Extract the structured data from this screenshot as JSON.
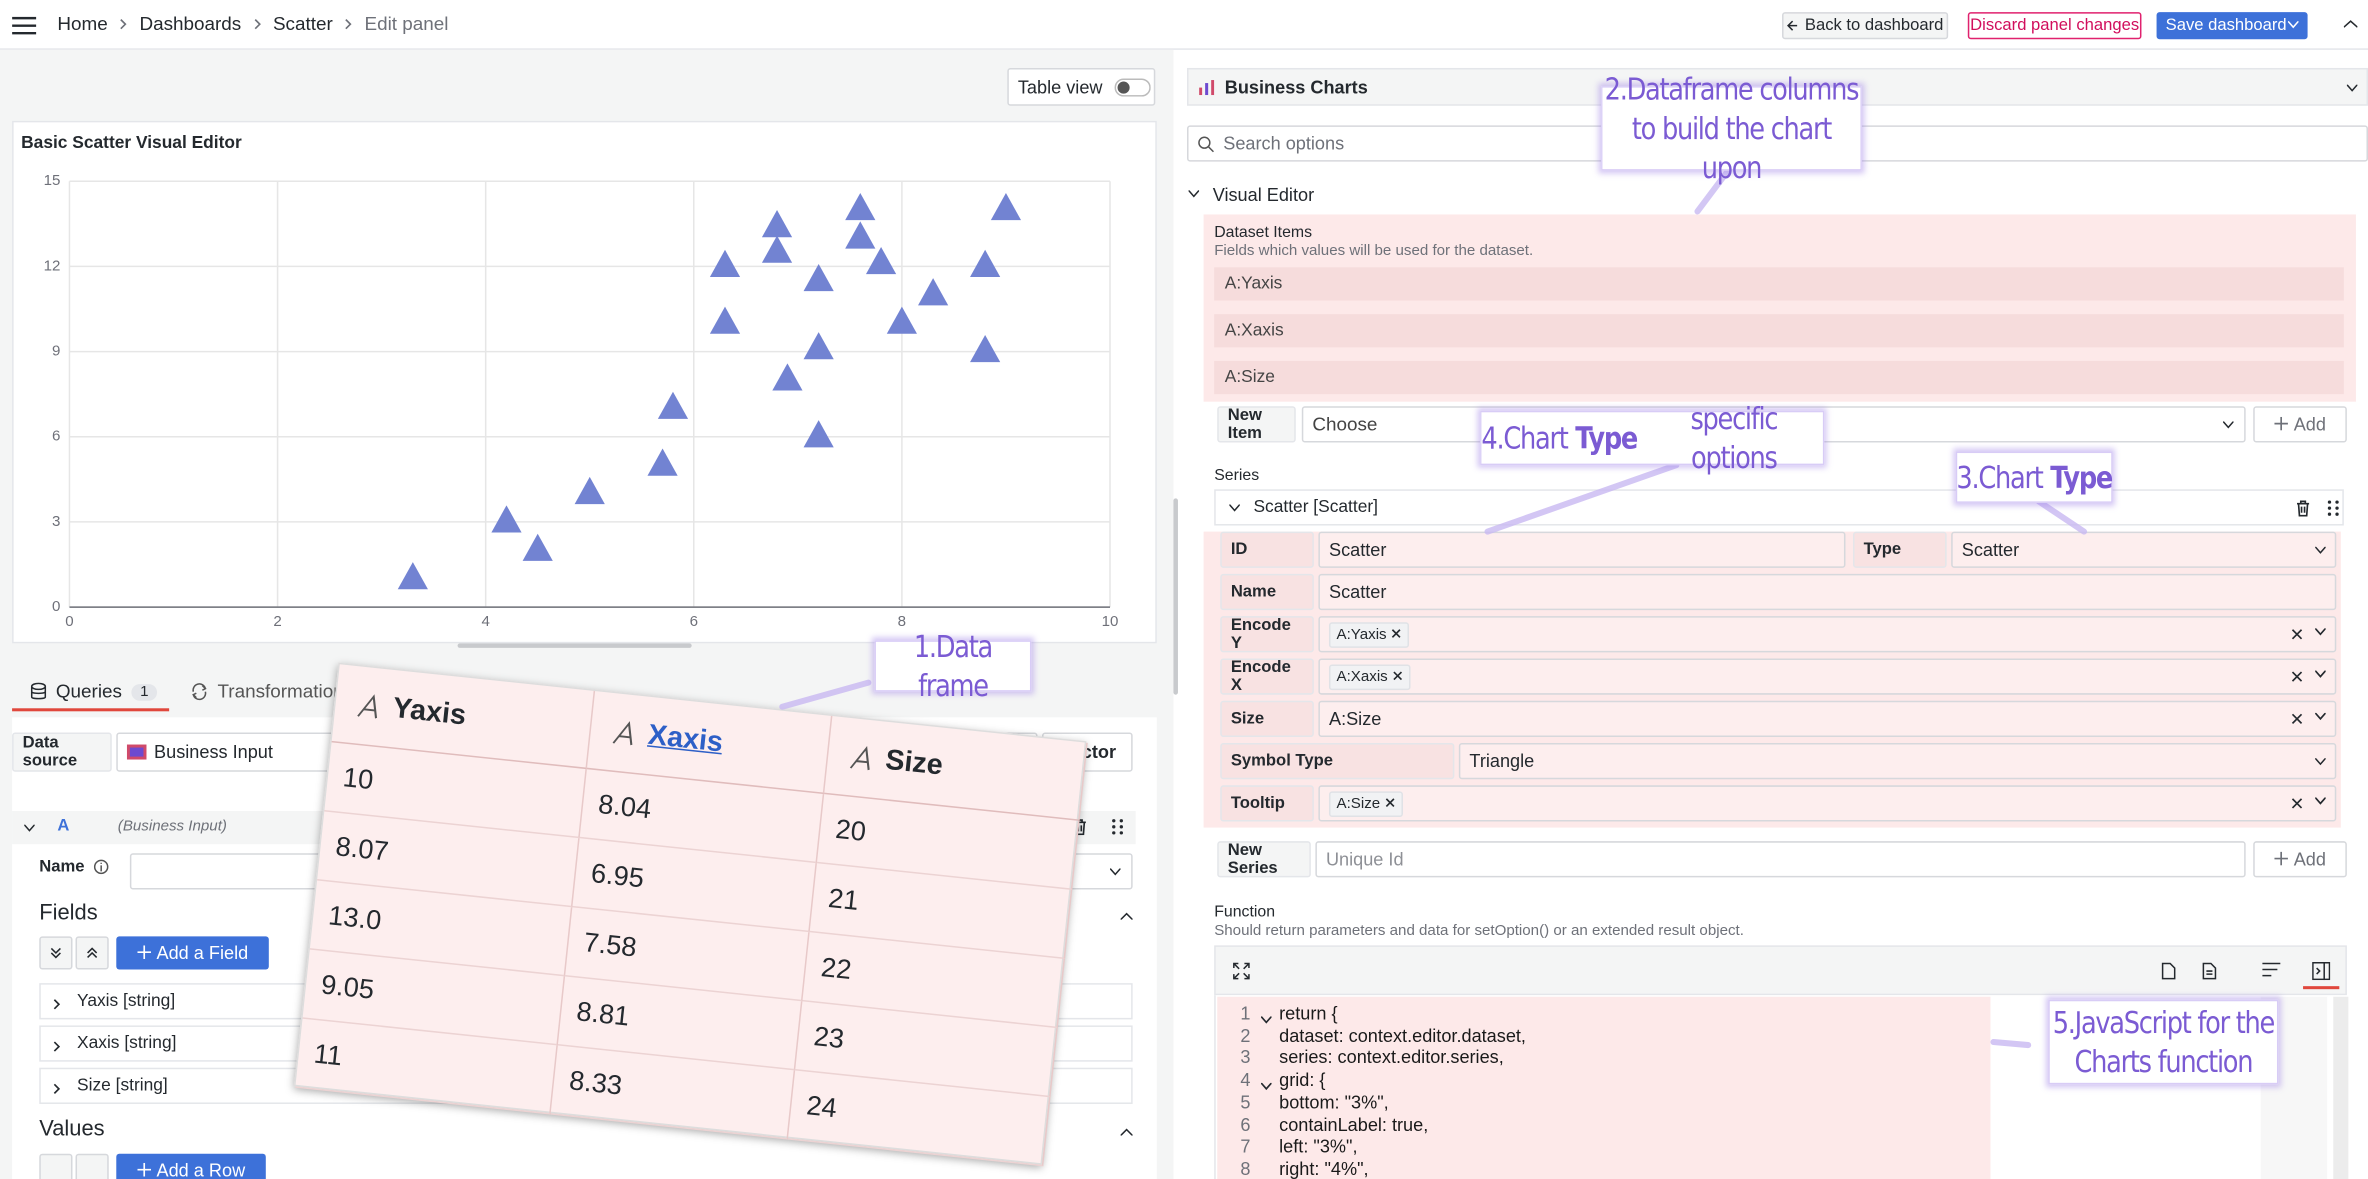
{
  "topbar": {
    "breadcrumbs": [
      "Home",
      "Dashboards",
      "Scatter",
      "Edit panel"
    ],
    "back": "Back to dashboard",
    "discard": "Discard panel changes",
    "save": "Save dashboard"
  },
  "left": {
    "table_view": "Table view",
    "tabs": {
      "queries": "Queries",
      "queries_count": "1",
      "transformations": "Transformation"
    },
    "data_source_label": "Data source",
    "data_source": "Business Input",
    "inspector": "ctor",
    "query": {
      "ref": "A",
      "source": "(Business Input)",
      "name_label": "Name"
    },
    "fields_title": "Fields",
    "add_field": "Add a Field",
    "fields": [
      "Yaxis [string]",
      "Xaxis [string]",
      "Size [string]"
    ],
    "values_title": "Values",
    "add_row": "Add a Row"
  },
  "chart_data": {
    "type": "scatter",
    "title": "Basic Scatter Visual Editor",
    "series": [
      {
        "color": "#7283d2",
        "symbol": "triangle",
        "x": [
          3.3,
          4.2,
          4.5,
          5.0,
          5.7,
          5.8,
          6.3,
          6.3,
          6.8,
          6.8,
          6.9,
          7.2,
          7.2,
          7.2,
          7.6,
          7.6,
          7.8,
          8.0,
          8.3,
          8.8,
          8.8,
          9.0
        ],
        "values": [
          1,
          3,
          2,
          4,
          5,
          7,
          12,
          10,
          13.4,
          12.5,
          8,
          11.5,
          9.1,
          6,
          13,
          14,
          12.1,
          10,
          11,
          9,
          12,
          14
        ]
      }
    ],
    "xlim": [
      0,
      10
    ],
    "ylim": [
      0,
      15
    ],
    "xticks": [
      0,
      2,
      4,
      6,
      8,
      10
    ],
    "yticks": [
      0,
      3,
      6,
      9,
      12,
      15
    ],
    "grid": true
  },
  "dataframe": {
    "columns": [
      "Yaxis",
      "Xaxis",
      "Size"
    ],
    "rows": [
      [
        "10",
        "8.04",
        "20"
      ],
      [
        "8.07",
        "6.95",
        "21"
      ],
      [
        "13.0",
        "7.58",
        "22"
      ],
      [
        "9.05",
        "8.81",
        "23"
      ],
      [
        "11",
        "8.33",
        "24"
      ]
    ]
  },
  "right": {
    "plugin": "Business Charts",
    "search": "Search options",
    "visual_editor": "Visual Editor",
    "dataset": {
      "title": "Dataset Items",
      "description": "Fields which values will be used for the dataset.",
      "items": [
        "A:Yaxis",
        "A:Xaxis",
        "A:Size"
      ],
      "new_item_label": "New Item",
      "new_item_placeholder": "Choose",
      "add": "Add"
    },
    "series_title": "Series",
    "series": {
      "header": "Scatter [Scatter]",
      "id_label": "ID",
      "id": "Scatter",
      "type_label": "Type",
      "type": "Scatter",
      "name_label": "Name",
      "name": "Scatter",
      "encode_y_label": "Encode Y",
      "encode_y": "A:Yaxis",
      "encode_x_label": "Encode X",
      "encode_x": "A:Xaxis",
      "size_label": "Size",
      "size": "A:Size",
      "symbol_label": "Symbol Type",
      "symbol": "Triangle",
      "tooltip_label": "Tooltip",
      "tooltip": "A:Size"
    },
    "new_series_label": "New Series",
    "new_series_placeholder": "Unique Id",
    "add_series": "Add",
    "function": {
      "title": "Function",
      "description": "Should return parameters and data for setOption() or an extended result object.",
      "line_numbers": [
        "1",
        "2",
        "3",
        "4",
        "5",
        "6",
        "7",
        "8"
      ],
      "lines": [
        "return {",
        "  dataset: context.editor.dataset,",
        "  series: context.editor.series,",
        "  grid: {",
        "    bottom: \"3%\",",
        "    containLabel: true,",
        "    left: \"3%\",",
        "    right: \"4%\","
      ]
    }
  },
  "annotations": {
    "data_frame": "1.Data frame",
    "columns": [
      "2.Dataframe columns",
      "to build the chart upon"
    ],
    "chart_type": [
      "3.Chart",
      "Type"
    ],
    "type_options": [
      "4.Chart",
      "Type",
      "specific options"
    ],
    "javascript": [
      "5.JavaScript for the",
      "Charts function"
    ]
  }
}
